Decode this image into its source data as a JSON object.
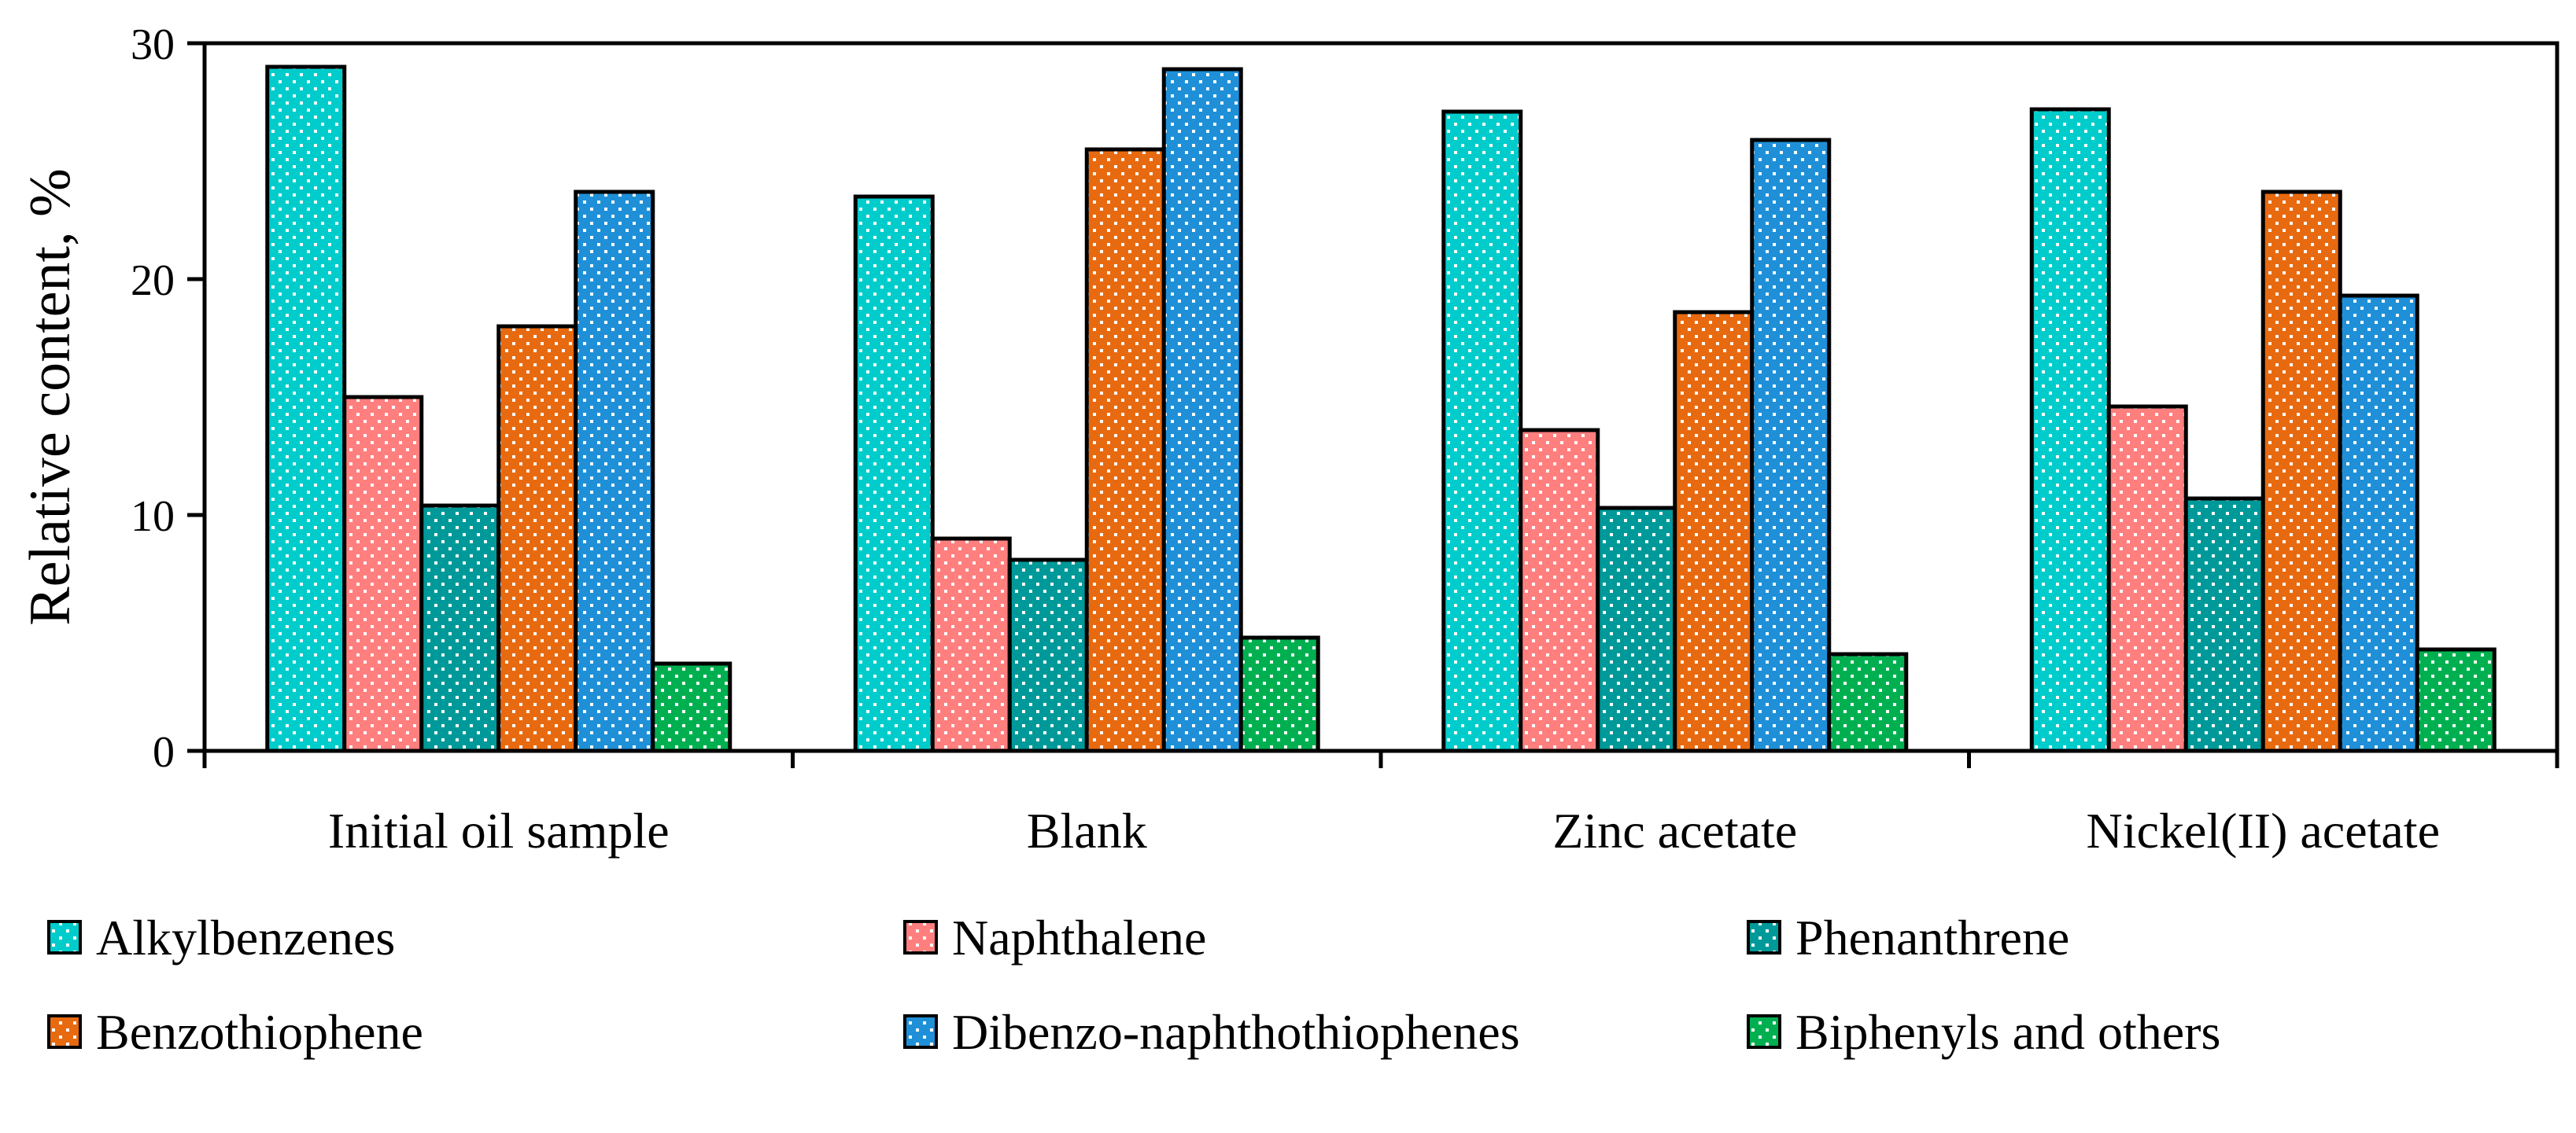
{
  "chart_data": {
    "type": "bar",
    "title": "",
    "xlabel": "",
    "ylabel": "Relative content, %",
    "ylim": [
      0,
      30
    ],
    "yticks": [
      0,
      10,
      20,
      30
    ],
    "grid": false,
    "legend_position": "bottom",
    "categories": [
      "Initial oil sample",
      "Blank",
      "Zinc acetate",
      "Nickel(II) acetate"
    ],
    "series": [
      {
        "name": "Alkylbenzenes",
        "color": "#00cccc",
        "values": [
          29.0,
          23.5,
          27.1,
          27.2
        ]
      },
      {
        "name": "Naphthalene",
        "color": "#ff7f7f",
        "values": [
          15.0,
          9.0,
          13.6,
          14.6
        ]
      },
      {
        "name": "Phenanthrene",
        "color": "#009999",
        "values": [
          10.4,
          8.1,
          10.3,
          10.7
        ]
      },
      {
        "name": "Benzothiophene",
        "color": "#e86a10",
        "values": [
          18.0,
          25.5,
          18.6,
          23.7
        ]
      },
      {
        "name": "Dibenzo-naphthothiophenes",
        "color": "#1f90d8",
        "values": [
          23.7,
          28.9,
          25.9,
          19.3
        ]
      },
      {
        "name": "Biphenyls and others",
        "color": "#00b050",
        "values": [
          3.7,
          4.8,
          4.1,
          4.3
        ]
      }
    ]
  }
}
